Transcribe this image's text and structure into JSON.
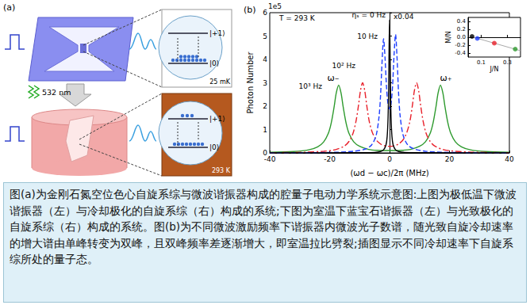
{
  "panel_a": {
    "label": "(a)",
    "upper": {
      "states": [
        "|+1⟩",
        "|0⟩"
      ],
      "temperature": "25 mK"
    },
    "pump": "532 nm",
    "lower": {
      "states": [
        "|+1⟩",
        "|0⟩"
      ],
      "temperature": "293 K"
    }
  },
  "chart_data": [
    {
      "type": "line",
      "title": "(b)",
      "xlabel": "(ωd − ωc)/2π (MHz)",
      "ylabel": "Photon Number",
      "xlim": [
        -40,
        40
      ],
      "xticks": [
        -40,
        -20,
        0,
        20,
        40
      ],
      "ylim": [
        0,
        6
      ],
      "yticks": [
        0,
        1,
        2,
        3,
        4,
        5,
        6
      ],
      "grid": false,
      "annotations": [
        "1e5",
        "T = 293 K",
        "x0.04",
        "ω₋",
        "ω₊"
      ],
      "series": [
        {
          "name": "ηₛ = 0 Hz",
          "color": "#000000",
          "line_style": "solid",
          "x": [
            -40,
            -10,
            -5,
            -3,
            -2,
            -1.2,
            -0.8,
            -0.5,
            -0.3,
            -0.15,
            0,
            0.15,
            0.3,
            0.5,
            0.8,
            1.2,
            2,
            3,
            5,
            10,
            40
          ],
          "values": [
            0,
            0.01,
            0.02,
            0.06,
            0.13,
            0.34,
            0.7,
            1.51,
            2.85,
            4.56,
            5.7,
            4.56,
            2.85,
            1.51,
            0.7,
            0.34,
            0.13,
            0.06,
            0.02,
            0.01,
            0
          ]
        },
        {
          "name": "10 Hz",
          "color": "#1f3fff",
          "line_style": "dashed",
          "x": [
            -40,
            -20,
            -12,
            -8,
            -6,
            -4.5,
            -3.5,
            -3,
            -2.5,
            -2,
            -1.5,
            -1,
            -0.5,
            0,
            0.5,
            1,
            1.5,
            2,
            2.5,
            3,
            3.5,
            4.5,
            6,
            8,
            12,
            20,
            40
          ],
          "values": [
            0,
            0.02,
            0.07,
            0.17,
            0.34,
            0.74,
            1.57,
            2.48,
            3.91,
            4.88,
            4.04,
            2.78,
            2.08,
            1.88,
            2.11,
            2.86,
            4.19,
            5.07,
            4.06,
            2.58,
            1.62,
            0.77,
            0.35,
            0.18,
            0.07,
            0.02,
            0
          ]
        },
        {
          "name": "10² Hz",
          "color": "#e8202a",
          "line_style": "dashdot",
          "x": [
            -40,
            -28,
            -22,
            -18,
            -15,
            -13.5,
            -12.2,
            -11.2,
            -10.4,
            -9.7,
            -9,
            -8.3,
            -7.6,
            -6.8,
            -5.8,
            -4.5,
            -3,
            -1.5,
            0,
            1.5,
            3,
            4.5,
            5.8,
            6.8,
            7.6,
            8.3,
            9,
            9.7,
            10.4,
            11.2,
            12.2,
            13.5,
            15,
            18,
            22,
            28,
            40
          ],
          "values": [
            0.01,
            0.03,
            0.07,
            0.14,
            0.3,
            0.5,
            0.84,
            1.36,
            2.01,
            2.67,
            3.0,
            2.67,
            2.01,
            1.36,
            0.89,
            0.56,
            0.38,
            0.3,
            0.28,
            0.3,
            0.38,
            0.56,
            0.89,
            1.36,
            2.01,
            2.67,
            3.0,
            2.67,
            2.01,
            1.36,
            0.84,
            0.5,
            0.3,
            0.14,
            0.07,
            0.03,
            0.01
          ]
        },
        {
          "name": "10³ Hz",
          "color": "#2e9a2e",
          "line_style": "solid",
          "x": [
            -40,
            -32,
            -27,
            -24,
            -22,
            -20.5,
            -19.5,
            -18.5,
            -17.8,
            -17,
            -16.2,
            -15.5,
            -14.5,
            -13.5,
            -12,
            -10,
            -7,
            -4,
            0,
            4,
            7,
            10,
            12,
            13.5,
            14.5,
            15.5,
            16.2,
            17,
            17.8,
            18.5,
            19.5,
            20.5,
            22,
            24,
            27,
            32,
            40
          ],
          "values": [
            0.03,
            0.06,
            0.13,
            0.26,
            0.47,
            0.82,
            1.27,
            1.98,
            2.56,
            2.9,
            2.56,
            1.98,
            1.27,
            0.82,
            0.48,
            0.28,
            0.15,
            0.11,
            0.1,
            0.11,
            0.15,
            0.28,
            0.48,
            0.82,
            1.27,
            1.98,
            2.56,
            2.9,
            2.56,
            1.98,
            1.27,
            0.82,
            0.47,
            0.26,
            0.13,
            0.06,
            0.03
          ]
        }
      ]
    },
    {
      "type": "scatter",
      "xlabel": "J/N",
      "ylabel": "M/N",
      "xlim": [
        0,
        0.4
      ],
      "xticks": [
        0.1,
        0.3
      ],
      "ylim": [
        -0.5,
        0.5
      ],
      "yticks": [
        -0.4,
        -0.2,
        {
          "value": 0,
          "label": "0.0"
        },
        0.2,
        0.4
      ],
      "grid": false,
      "series": [
        {
          "type": "line",
          "color": "#aaaaaa",
          "line_style": "solid",
          "x": [
            0.02,
            0.4
          ],
          "values": [
            0.02,
            -0.34
          ]
        },
        {
          "type": "scatter",
          "marker": "circle",
          "x": [
            0.03,
            0.07,
            0.2,
            0.36
          ],
          "values": [
            0.02,
            -0.03,
            -0.15,
            -0.3
          ],
          "colors": [
            "#000000",
            "#1f3fff",
            "#e8202a",
            "#2e9a2e"
          ]
        }
      ]
    }
  ],
  "caption": "图(a)为金刚石氮空位色心自旋系综与微波谐振器构成的腔量子电动力学系统示意图:上图为极低温下微波谐振器（左）与冷却极化的自旋系综（右）构成的系统;下图为室温下蓝宝石谐振器（左）与光致极化的自旋系综（右）构成的系统。图(b)为不同微波激励频率下谐振器内微波光子数谱，随光致自旋冷却速率的增大谱由单峰转变为双峰，且双峰频率差逐渐增大，即室温拉比劈裂;插图显示不同冷却速率下自旋系综所处的量子态。"
}
